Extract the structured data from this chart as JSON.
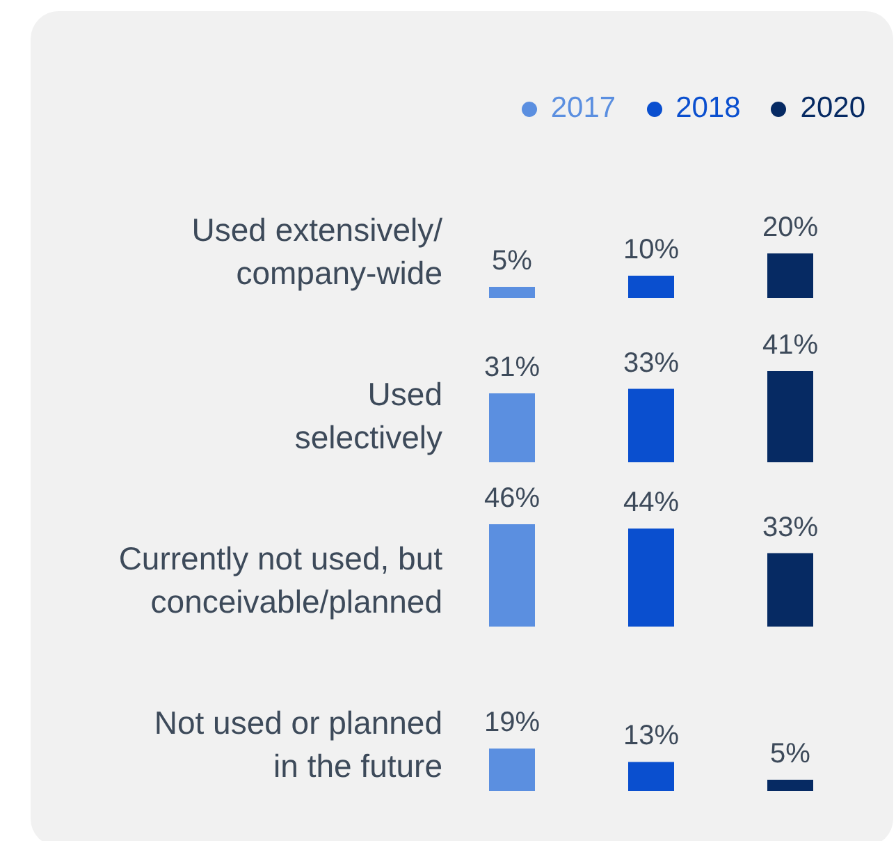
{
  "chart_data": [
    {
      "type": "other",
      "categories": [
        "2017",
        "2018",
        "2020"
      ],
      "colors": [
        "#5b8fe0",
        "#0a4fcf",
        "#062a63"
      ]
    },
    {
      "type": "bar",
      "ylabel": "Used extensively/\ncompany-wide",
      "categories": [
        null,
        null,
        null
      ],
      "values": [
        5,
        10,
        20
      ],
      "colors": [
        "#5b8fe0",
        "#0a4fcf",
        "#062a63"
      ],
      "value_labels": [
        "5%",
        "10%",
        "20%"
      ]
    },
    {
      "type": "bar",
      "ylabel": "Used\nselectively",
      "categories": [
        null,
        null,
        null
      ],
      "values": [
        31,
        33,
        41
      ],
      "colors": [
        "#5b8fe0",
        "#0a4fcf",
        "#062a63"
      ],
      "value_labels": [
        "31%",
        "33%",
        "41%"
      ]
    },
    {
      "type": "bar",
      "ylabel": "Currently not used, but\nconceivable/planned",
      "categories": [
        null,
        null,
        null
      ],
      "values": [
        46,
        44,
        33
      ],
      "colors": [
        "#5b8fe0",
        "#0a4fcf",
        "#062a63"
      ],
      "value_labels": [
        "46%",
        "44%",
        "33%"
      ]
    },
    {
      "type": "bar",
      "ylabel": "Not used or planned\nin the future",
      "categories": [
        null,
        null,
        null
      ],
      "values": [
        19,
        13,
        5
      ],
      "colors": [
        "#5b8fe0",
        "#0a4fcf",
        "#062a63"
      ],
      "value_labels": [
        "19%",
        "13%",
        "5%"
      ]
    }
  ]
}
